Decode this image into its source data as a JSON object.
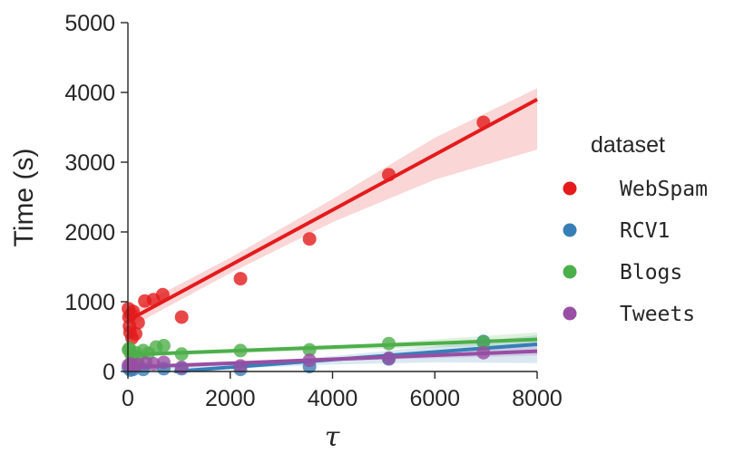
{
  "chart_data": {
    "type": "scatter",
    "xlabel": "τ",
    "ylabel": "Time (s)",
    "xlim": [
      0,
      8000
    ],
    "ylim": [
      0,
      5000
    ],
    "xticks": [
      0,
      2000,
      4000,
      6000,
      8000
    ],
    "yticks": [
      0,
      1000,
      2000,
      3000,
      4000,
      5000
    ],
    "grid": false,
    "legend": {
      "title": "dataset",
      "placement": "right"
    },
    "series": [
      {
        "name": "WebSpam",
        "color": "#e41a1c",
        "points": [
          [
            10,
            900
          ],
          [
            20,
            780
          ],
          [
            30,
            650
          ],
          [
            40,
            560
          ],
          [
            60,
            820
          ],
          [
            80,
            480
          ],
          [
            100,
            860
          ],
          [
            150,
            540
          ],
          [
            200,
            700
          ],
          [
            330,
            1010
          ],
          [
            500,
            1030
          ],
          [
            680,
            1100
          ],
          [
            1050,
            780
          ],
          [
            2200,
            1330
          ],
          [
            3550,
            1900
          ],
          [
            5100,
            2820
          ],
          [
            6950,
            3570
          ]
        ],
        "fit": [
          [
            0,
            730
          ],
          [
            8000,
            3900
          ]
        ],
        "ci_lower": [
          [
            0,
            620
          ],
          [
            2000,
            1410
          ],
          [
            4000,
            2140
          ],
          [
            6000,
            2750
          ],
          [
            8000,
            3180
          ]
        ],
        "ci_upper": [
          [
            0,
            860
          ],
          [
            2000,
            1630
          ],
          [
            4000,
            2470
          ],
          [
            6000,
            3350
          ],
          [
            8000,
            4060
          ]
        ]
      },
      {
        "name": "RCV1",
        "color": "#377eb8",
        "points": [
          [
            10,
            50
          ],
          [
            50,
            20
          ],
          [
            100,
            30
          ],
          [
            300,
            30
          ],
          [
            700,
            40
          ],
          [
            1050,
            40
          ],
          [
            2200,
            30
          ],
          [
            3550,
            70
          ],
          [
            5100,
            180
          ],
          [
            6950,
            430
          ]
        ],
        "fit": [
          [
            0,
            -50
          ],
          [
            8000,
            390
          ]
        ],
        "ci_lower": [
          [
            0,
            -110
          ],
          [
            2000,
            40
          ],
          [
            4000,
            100
          ],
          [
            6000,
            130
          ],
          [
            8000,
            120
          ]
        ],
        "ci_upper": [
          [
            0,
            10
          ],
          [
            2000,
            110
          ],
          [
            4000,
            220
          ],
          [
            6000,
            360
          ],
          [
            8000,
            520
          ]
        ]
      },
      {
        "name": "Blogs",
        "color": "#4daf4a",
        "points": [
          [
            10,
            310
          ],
          [
            30,
            330
          ],
          [
            60,
            250
          ],
          [
            100,
            220
          ],
          [
            150,
            270
          ],
          [
            200,
            200
          ],
          [
            300,
            300
          ],
          [
            400,
            260
          ],
          [
            550,
            350
          ],
          [
            700,
            370
          ],
          [
            1050,
            250
          ],
          [
            2200,
            300
          ],
          [
            3550,
            310
          ],
          [
            5100,
            400
          ],
          [
            6950,
            420
          ]
        ],
        "fit": [
          [
            0,
            240
          ],
          [
            8000,
            460
          ]
        ],
        "ci_lower": [
          [
            0,
            210
          ],
          [
            4000,
            310
          ],
          [
            8000,
            380
          ]
        ],
        "ci_upper": [
          [
            0,
            270
          ],
          [
            4000,
            360
          ],
          [
            8000,
            560
          ]
        ]
      },
      {
        "name": "Tweets",
        "color": "#984ea3",
        "points": [
          [
            10,
            90
          ],
          [
            50,
            110
          ],
          [
            100,
            80
          ],
          [
            200,
            100
          ],
          [
            350,
            120
          ],
          [
            500,
            110
          ],
          [
            700,
            130
          ],
          [
            1050,
            60
          ],
          [
            2200,
            80
          ],
          [
            3550,
            160
          ],
          [
            5100,
            190
          ],
          [
            6950,
            270
          ]
        ],
        "fit": [
          [
            0,
            60
          ],
          [
            8000,
            290
          ]
        ],
        "ci_lower": [
          [
            0,
            40
          ],
          [
            4000,
            150
          ],
          [
            8000,
            230
          ]
        ],
        "ci_upper": [
          [
            0,
            90
          ],
          [
            4000,
            200
          ],
          [
            8000,
            360
          ]
        ]
      }
    ]
  }
}
